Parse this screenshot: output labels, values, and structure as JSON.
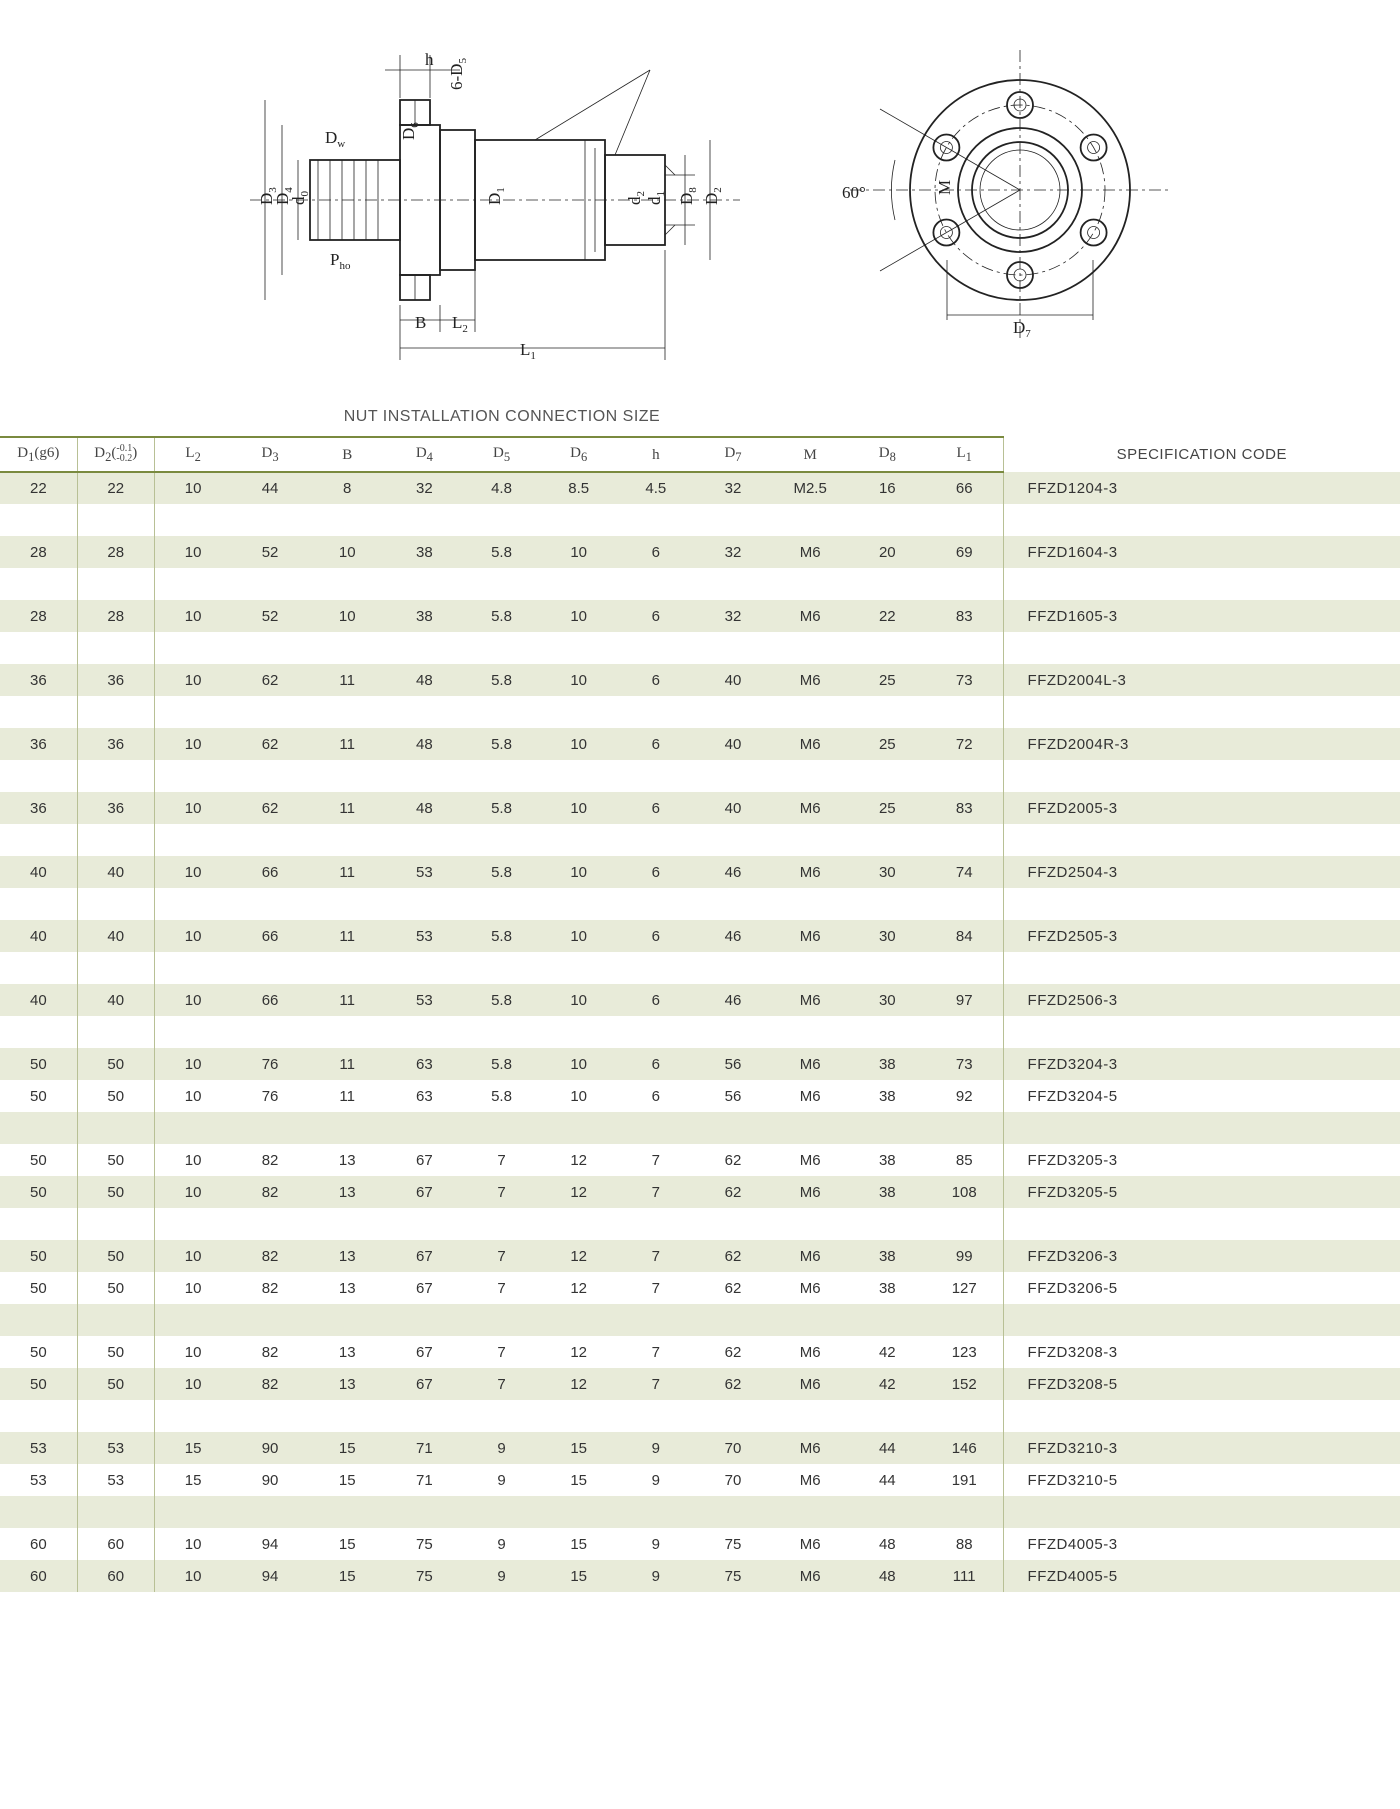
{
  "diagram": {
    "labels_left": [
      "h",
      "6-D₅",
      "D_w",
      "D₆",
      "D₃",
      "D₄",
      "d₀",
      "P_ho",
      "D₁",
      "d₂",
      "d₁",
      "D₈",
      "D₂",
      "B",
      "L₂",
      "L₁"
    ],
    "labels_right": [
      "60°",
      "M",
      "D₇"
    ],
    "stroke_color": "#222222",
    "font_family": "Times New Roman"
  },
  "table": {
    "title": "NUT INSTALLATION CONNECTION SIZE",
    "spec_header": "SPECIFICATION CODE",
    "row_colors": {
      "odd": "#e8ebd9",
      "even": "#ffffff"
    },
    "border_color": "#7a8a3f",
    "sep_color": "#b8c095",
    "columns": [
      {
        "key": "D1",
        "label_html": "D<sub>1</sub>(g6)"
      },
      {
        "key": "D2",
        "label_html": "D<sub>2</sub>(<span class='tol'>-0.1<br>-0.2</span>)"
      },
      {
        "key": "L2",
        "label_html": "L<sub>2</sub>"
      },
      {
        "key": "D3",
        "label_html": "D<sub>3</sub>"
      },
      {
        "key": "B",
        "label_html": "B"
      },
      {
        "key": "D4",
        "label_html": "D<sub>4</sub>"
      },
      {
        "key": "D5",
        "label_html": "D<sub>5</sub>"
      },
      {
        "key": "D6",
        "label_html": "D<sub>6</sub>"
      },
      {
        "key": "h",
        "label_html": "h"
      },
      {
        "key": "D7",
        "label_html": "D<sub>7</sub>"
      },
      {
        "key": "M",
        "label_html": "M"
      },
      {
        "key": "D8",
        "label_html": "D<sub>8</sub>"
      },
      {
        "key": "L1",
        "label_html": "L<sub>1</sub>"
      }
    ],
    "rows": [
      {
        "band": "odd",
        "cells": [
          "22",
          "22",
          "10",
          "44",
          "8",
          "32",
          "4.8",
          "8.5",
          "4.5",
          "32",
          "M2.5",
          "16",
          "66"
        ],
        "code": "FFZD1204-3"
      },
      {
        "band": "even",
        "cells": [
          "",
          "",
          "",
          "",
          "",
          "",
          "",
          "",
          "",
          "",
          "",
          "",
          ""
        ],
        "code": ""
      },
      {
        "band": "odd",
        "cells": [
          "28",
          "28",
          "10",
          "52",
          "10",
          "38",
          "5.8",
          "10",
          "6",
          "32",
          "M6",
          "20",
          "69"
        ],
        "code": "FFZD1604-3"
      },
      {
        "band": "even",
        "cells": [
          "",
          "",
          "",
          "",
          "",
          "",
          "",
          "",
          "",
          "",
          "",
          "",
          ""
        ],
        "code": ""
      },
      {
        "band": "odd",
        "cells": [
          "28",
          "28",
          "10",
          "52",
          "10",
          "38",
          "5.8",
          "10",
          "6",
          "32",
          "M6",
          "22",
          "83"
        ],
        "code": "FFZD1605-3"
      },
      {
        "band": "even",
        "cells": [
          "",
          "",
          "",
          "",
          "",
          "",
          "",
          "",
          "",
          "",
          "",
          "",
          ""
        ],
        "code": ""
      },
      {
        "band": "odd",
        "cells": [
          "36",
          "36",
          "10",
          "62",
          "11",
          "48",
          "5.8",
          "10",
          "6",
          "40",
          "M6",
          "25",
          "73"
        ],
        "code": "FFZD2004L-3"
      },
      {
        "band": "even",
        "cells": [
          "",
          "",
          "",
          "",
          "",
          "",
          "",
          "",
          "",
          "",
          "",
          "",
          ""
        ],
        "code": ""
      },
      {
        "band": "odd",
        "cells": [
          "36",
          "36",
          "10",
          "62",
          "11",
          "48",
          "5.8",
          "10",
          "6",
          "40",
          "M6",
          "25",
          "72"
        ],
        "code": "FFZD2004R-3"
      },
      {
        "band": "even",
        "cells": [
          "",
          "",
          "",
          "",
          "",
          "",
          "",
          "",
          "",
          "",
          "",
          "",
          ""
        ],
        "code": ""
      },
      {
        "band": "odd",
        "cells": [
          "36",
          "36",
          "10",
          "62",
          "11",
          "48",
          "5.8",
          "10",
          "6",
          "40",
          "M6",
          "25",
          "83"
        ],
        "code": "FFZD2005-3"
      },
      {
        "band": "even",
        "cells": [
          "",
          "",
          "",
          "",
          "",
          "",
          "",
          "",
          "",
          "",
          "",
          "",
          ""
        ],
        "code": ""
      },
      {
        "band": "odd",
        "cells": [
          "40",
          "40",
          "10",
          "66",
          "11",
          "53",
          "5.8",
          "10",
          "6",
          "46",
          "M6",
          "30",
          "74"
        ],
        "code": "FFZD2504-3"
      },
      {
        "band": "even",
        "cells": [
          "",
          "",
          "",
          "",
          "",
          "",
          "",
          "",
          "",
          "",
          "",
          "",
          ""
        ],
        "code": ""
      },
      {
        "band": "odd",
        "cells": [
          "40",
          "40",
          "10",
          "66",
          "11",
          "53",
          "5.8",
          "10",
          "6",
          "46",
          "M6",
          "30",
          "84"
        ],
        "code": "FFZD2505-3"
      },
      {
        "band": "even",
        "cells": [
          "",
          "",
          "",
          "",
          "",
          "",
          "",
          "",
          "",
          "",
          "",
          "",
          ""
        ],
        "code": ""
      },
      {
        "band": "odd",
        "cells": [
          "40",
          "40",
          "10",
          "66",
          "11",
          "53",
          "5.8",
          "10",
          "6",
          "46",
          "M6",
          "30",
          "97"
        ],
        "code": "FFZD2506-3"
      },
      {
        "band": "even",
        "cells": [
          "",
          "",
          "",
          "",
          "",
          "",
          "",
          "",
          "",
          "",
          "",
          "",
          ""
        ],
        "code": ""
      },
      {
        "band": "odd",
        "cells": [
          "50",
          "50",
          "10",
          "76",
          "11",
          "63",
          "5.8",
          "10",
          "6",
          "56",
          "M6",
          "38",
          "73"
        ],
        "code": "FFZD3204-3"
      },
      {
        "band": "even",
        "cells": [
          "50",
          "50",
          "10",
          "76",
          "11",
          "63",
          "5.8",
          "10",
          "6",
          "56",
          "M6",
          "38",
          "92"
        ],
        "code": "FFZD3204-5"
      },
      {
        "band": "odd",
        "cells": [
          "",
          "",
          "",
          "",
          "",
          "",
          "",
          "",
          "",
          "",
          "",
          "",
          ""
        ],
        "code": ""
      },
      {
        "band": "even",
        "cells": [
          "50",
          "50",
          "10",
          "82",
          "13",
          "67",
          "7",
          "12",
          "7",
          "62",
          "M6",
          "38",
          "85"
        ],
        "code": "FFZD3205-3"
      },
      {
        "band": "odd",
        "cells": [
          "50",
          "50",
          "10",
          "82",
          "13",
          "67",
          "7",
          "12",
          "7",
          "62",
          "M6",
          "38",
          "108"
        ],
        "code": "FFZD3205-5"
      },
      {
        "band": "even",
        "cells": [
          "",
          "",
          "",
          "",
          "",
          "",
          "",
          "",
          "",
          "",
          "",
          "",
          ""
        ],
        "code": ""
      },
      {
        "band": "odd",
        "cells": [
          "50",
          "50",
          "10",
          "82",
          "13",
          "67",
          "7",
          "12",
          "7",
          "62",
          "M6",
          "38",
          "99"
        ],
        "code": "FFZD3206-3"
      },
      {
        "band": "even",
        "cells": [
          "50",
          "50",
          "10",
          "82",
          "13",
          "67",
          "7",
          "12",
          "7",
          "62",
          "M6",
          "38",
          "127"
        ],
        "code": "FFZD3206-5"
      },
      {
        "band": "odd",
        "cells": [
          "",
          "",
          "",
          "",
          "",
          "",
          "",
          "",
          "",
          "",
          "",
          "",
          ""
        ],
        "code": ""
      },
      {
        "band": "even",
        "cells": [
          "50",
          "50",
          "10",
          "82",
          "13",
          "67",
          "7",
          "12",
          "7",
          "62",
          "M6",
          "42",
          "123"
        ],
        "code": "FFZD3208-3"
      },
      {
        "band": "odd",
        "cells": [
          "50",
          "50",
          "10",
          "82",
          "13",
          "67",
          "7",
          "12",
          "7",
          "62",
          "M6",
          "42",
          "152"
        ],
        "code": "FFZD3208-5"
      },
      {
        "band": "even",
        "cells": [
          "",
          "",
          "",
          "",
          "",
          "",
          "",
          "",
          "",
          "",
          "",
          "",
          ""
        ],
        "code": ""
      },
      {
        "band": "odd",
        "cells": [
          "53",
          "53",
          "15",
          "90",
          "15",
          "71",
          "9",
          "15",
          "9",
          "70",
          "M6",
          "44",
          "146"
        ],
        "code": "FFZD3210-3"
      },
      {
        "band": "even",
        "cells": [
          "53",
          "53",
          "15",
          "90",
          "15",
          "71",
          "9",
          "15",
          "9",
          "70",
          "M6",
          "44",
          "191"
        ],
        "code": "FFZD3210-5"
      },
      {
        "band": "odd",
        "cells": [
          "",
          "",
          "",
          "",
          "",
          "",
          "",
          "",
          "",
          "",
          "",
          "",
          ""
        ],
        "code": ""
      },
      {
        "band": "even",
        "cells": [
          "60",
          "60",
          "10",
          "94",
          "15",
          "75",
          "9",
          "15",
          "9",
          "75",
          "M6",
          "48",
          "88"
        ],
        "code": "FFZD4005-3"
      },
      {
        "band": "odd",
        "cells": [
          "60",
          "60",
          "10",
          "94",
          "15",
          "75",
          "9",
          "15",
          "9",
          "75",
          "M6",
          "48",
          "111"
        ],
        "code": "FFZD4005-5"
      }
    ]
  }
}
